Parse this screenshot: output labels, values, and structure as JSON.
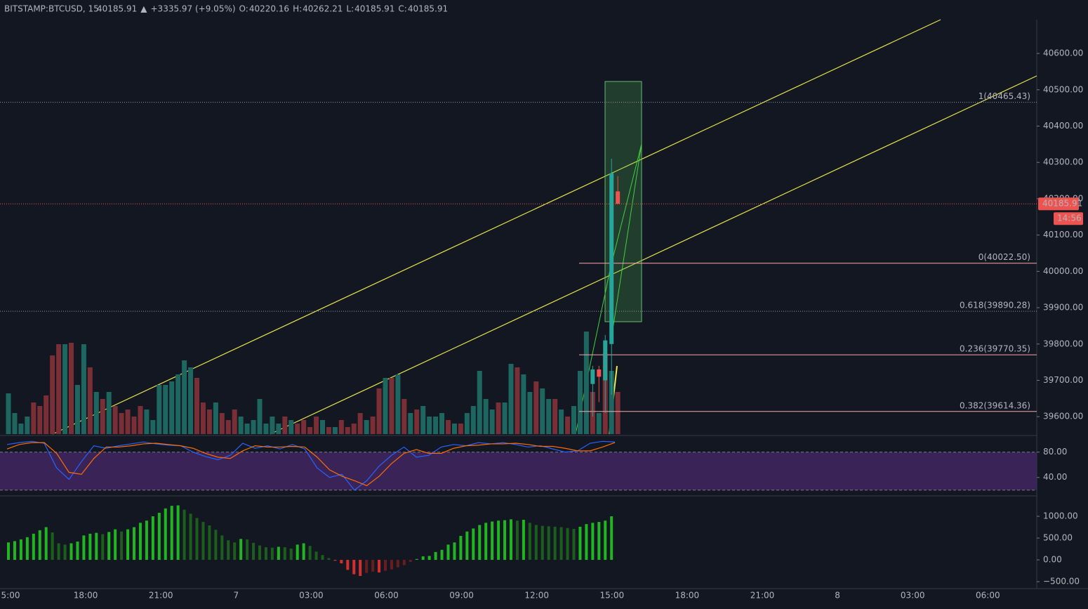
{
  "header": {
    "symbol": "BITSTAMP:BTCUSD, 15",
    "last": "40185.91",
    "arrow": "▲",
    "change": "+3335.97 (+9.05%)",
    "o_label": "O:",
    "o": "40220.16",
    "h_label": "H:",
    "h": "40262.21",
    "l_label": "L:",
    "l": "40185.91",
    "c_label": "C:",
    "c": "40185.91"
  },
  "chart_data": [
    {
      "type": "candlestick",
      "ylim": [
        39552,
        40693
      ],
      "yticks": [
        {
          "value": 39600,
          "label": "39600.00"
        },
        {
          "value": 39700,
          "label": "39700.00"
        },
        {
          "value": 39800,
          "label": "39800.00"
        },
        {
          "value": 39900,
          "label": "39900.00"
        },
        {
          "value": 40000,
          "label": "40000.00"
        },
        {
          "value": 40100,
          "label": "40100.00"
        },
        {
          "value": 40200,
          "label": "40200.00"
        },
        {
          "value": 40300,
          "label": "40300.00"
        },
        {
          "value": 40400,
          "label": "40400.00"
        },
        {
          "value": 40500,
          "label": "40500.00"
        },
        {
          "value": 40600,
          "label": "40600.00"
        }
      ],
      "up_color": "#26a69a",
      "down_color": "#ef5350",
      "candles": [
        {
          "open": 39690,
          "high": 39740,
          "low": 39600,
          "close": 39730
        },
        {
          "open": 39730,
          "high": 39740,
          "low": 39640,
          "close": 39710
        },
        {
          "open": 39700,
          "high": 39825,
          "low": 39610,
          "close": 39810
        },
        {
          "open": 39800,
          "high": 40310,
          "low": 39660,
          "close": 40270
        },
        {
          "open": 40220.16,
          "high": 40262.21,
          "low": 40185.91,
          "close": 40185.91
        }
      ],
      "last_price": {
        "value": 40185.91,
        "label": "40185.91"
      },
      "countdown": "14:56",
      "fib_levels": [
        {
          "value": 40465.43,
          "label": "1(40465.43)",
          "color": "#a5d6a7",
          "line": "dotted"
        },
        {
          "value": 40022.5,
          "label": "0(40022.50)",
          "color": "#f7a8a8",
          "line": "solid"
        },
        {
          "value": 39890.28,
          "label": "0.618(39890.28)",
          "color": "#a5d6a7",
          "line": "dotted"
        },
        {
          "value": 39770.35,
          "label": "0.236(39770.35)",
          "color": "#f7a8a8",
          "line": "solid"
        },
        {
          "value": 39614.36,
          "label": "0.382(39614.36)",
          "color": "#f7a8a8",
          "line": "solid"
        }
      ],
      "volume": {
        "values": [
          58,
          30,
          15,
          25,
          45,
          40,
          55,
          112,
          128,
          128,
          130,
          70,
          128,
          95,
          60,
          50,
          60,
          40,
          30,
          35,
          25,
          40,
          35,
          20,
          70,
          70,
          75,
          85,
          105,
          95,
          80,
          45,
          35,
          45,
          30,
          20,
          35,
          25,
          15,
          20,
          50,
          15,
          25,
          15,
          25,
          20,
          15,
          20,
          10,
          25,
          20,
          10,
          10,
          20,
          10,
          15,
          30,
          20,
          25,
          65,
          80,
          80,
          85,
          50,
          30,
          35,
          40,
          25,
          25,
          30,
          20,
          15,
          15,
          30,
          40,
          90,
          50,
          35,
          45,
          45,
          100,
          95,
          85,
          60,
          75,
          65,
          50,
          50,
          35,
          25,
          40,
          90,
          146,
          60,
          30,
          115,
          90,
          60
        ],
        "colors": [
          "#1e6660",
          "#1e6660",
          "#1e6660",
          "#1e6660",
          "#7a2e35",
          "#7a2e35",
          "#7a2e35",
          "#7a2e35",
          "#7a2e35",
          "#1e6660",
          "#7a2e35",
          "#1e6660",
          "#1e6660",
          "#7a2e35",
          "#1e6660",
          "#7a2e35",
          "#1e6660",
          "#7a2e35",
          "#7a2e35",
          "#7a2e35",
          "#7a2e35",
          "#7a2e35",
          "#1e6660",
          "#1e6660",
          "#1e6660",
          "#1e6660",
          "#1e6660",
          "#1e6660",
          "#1e6660",
          "#1e6660",
          "#7a2e35",
          "#7a2e35",
          "#7a2e35",
          "#1e6660",
          "#7a2e35",
          "#7a2e35",
          "#7a2e35",
          "#1e6660",
          "#1e6660",
          "#1e6660",
          "#1e6660",
          "#1e6660",
          "#1e6660",
          "#1e6660",
          "#7a2e35",
          "#1e6660",
          "#7a2e35",
          "#7a2e35",
          "#7a2e35",
          "#7a2e35",
          "#1e6660",
          "#7a2e35",
          "#1e6660",
          "#7a2e35",
          "#7a2e35",
          "#7a2e35",
          "#7a2e35",
          "#1e6660",
          "#7a2e35",
          "#7a2e35",
          "#1e6660",
          "#7a2e35",
          "#1e6660",
          "#7a2e35",
          "#1e6660",
          "#7a2e35",
          "#1e6660",
          "#1e6660",
          "#1e6660",
          "#1e6660",
          "#7a2e35",
          "#1e6660",
          "#7a2e35",
          "#1e6660",
          "#1e6660",
          "#1e6660",
          "#1e6660",
          "#1e6660",
          "#7a2e35",
          "#1e6660",
          "#1e6660",
          "#7a2e35",
          "#1e6660",
          "#1e6660",
          "#7a2e35",
          "#1e6660",
          "#1e6660",
          "#7a2e35",
          "#1e6660",
          "#7a2e35",
          "#1e6660",
          "#1e6660",
          "#1e6660",
          "#7a2e35",
          "#1e6660",
          "#7a2e35",
          "#1e6660",
          "#7a2e35"
        ]
      },
      "categories": [
        "5:00",
        "18:00",
        "21:00",
        "7",
        "03:00",
        "06:00",
        "09:00",
        "12:00",
        "15:00",
        "18:00",
        "21:00",
        "8",
        "03:00",
        "06:00"
      ]
    },
    {
      "type": "line",
      "ylim": [
        12,
        104
      ],
      "yticks": [
        {
          "value": 80,
          "label": "80.00"
        },
        {
          "value": 40,
          "label": "40.00"
        }
      ],
      "band": [
        20,
        80
      ],
      "band_color": "#4a2a6e",
      "series": [
        {
          "color": "#2962ff",
          "values": [
            92,
            95,
            97,
            94,
            55,
            37,
            65,
            90,
            86,
            90,
            93,
            96,
            93,
            91,
            90,
            80,
            73,
            68,
            75,
            94,
            86,
            90,
            85,
            92,
            85,
            55,
            40,
            45,
            20,
            35,
            58,
            75,
            88,
            72,
            75,
            88,
            92,
            90,
            95,
            93,
            95,
            92,
            88,
            90,
            85,
            80,
            82,
            94,
            97,
            96
          ]
        },
        {
          "color": "#ff6d00",
          "values": [
            85,
            92,
            95,
            95,
            78,
            48,
            45,
            70,
            88,
            88,
            90,
            93,
            94,
            92,
            90,
            86,
            78,
            72,
            70,
            82,
            90,
            88,
            88,
            89,
            88,
            72,
            52,
            42,
            35,
            27,
            42,
            62,
            78,
            84,
            78,
            78,
            86,
            90,
            91,
            93,
            93,
            94,
            92,
            89,
            89,
            86,
            82,
            82,
            88,
            95
          ]
        }
      ]
    },
    {
      "type": "histogram",
      "ylim": [
        -660,
        1435
      ],
      "yticks": [
        {
          "value": 1000,
          "label": "1000.00"
        },
        {
          "value": 500,
          "label": "500.00"
        },
        {
          "value": 0,
          "label": "0.00"
        },
        {
          "value": -500,
          "label": "−500.00"
        }
      ],
      "colors": {
        "rising_positive": "#22b522",
        "falling_positive": "#1c5e1c",
        "falling_negative": "#d32f2f",
        "rising_negative": "#6b1c1c"
      },
      "values": [
        400,
        430,
        470,
        520,
        600,
        680,
        750,
        630,
        380,
        350,
        380,
        420,
        560,
        600,
        620,
        590,
        640,
        700,
        650,
        700,
        750,
        850,
        900,
        1000,
        1080,
        1180,
        1240,
        1250,
        1150,
        1060,
        960,
        870,
        790,
        690,
        560,
        450,
        400,
        480,
        470,
        390,
        330,
        290,
        280,
        300,
        290,
        260,
        350,
        380,
        320,
        190,
        110,
        40,
        -20,
        -80,
        -230,
        -330,
        -370,
        -300,
        -270,
        -290,
        -250,
        -220,
        -170,
        -120,
        -50,
        20,
        80,
        90,
        180,
        230,
        350,
        400,
        550,
        650,
        720,
        800,
        850,
        880,
        900,
        910,
        930,
        900,
        920,
        850,
        800,
        780,
        770,
        760,
        750,
        730,
        710,
        760,
        820,
        850,
        870,
        900,
        1000
      ]
    }
  ]
}
